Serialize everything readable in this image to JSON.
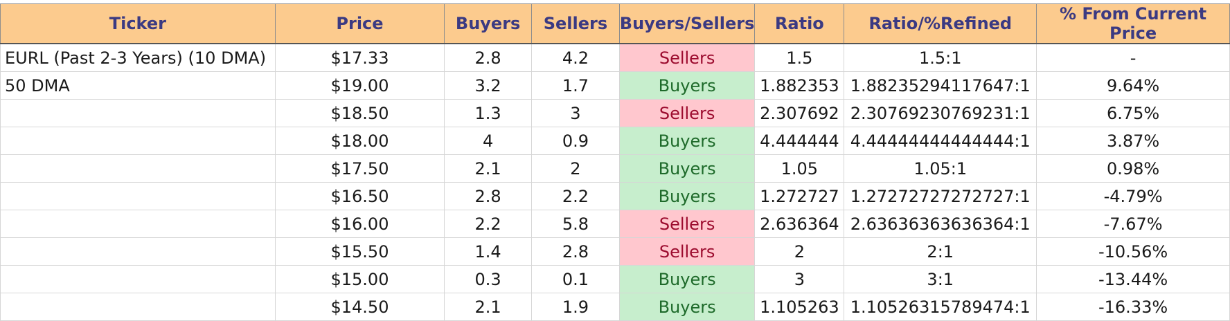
{
  "headers": [
    "Ticker",
    "Price",
    "Buyers",
    "Sellers",
    "Buyers/Sellers",
    "Ratio",
    "Ratio/%Refined",
    "% From Current Price"
  ],
  "rows": [
    {
      "ticker": "EURL (Past 2-3 Years) (10 DMA)",
      "price": "$17.33",
      "buyers": "2.8",
      "sellers": "4.2",
      "bs": "Sellers",
      "ratio": "1.5",
      "refined": "1.5:1",
      "pct": "-"
    },
    {
      "ticker": "50 DMA",
      "price": "$19.00",
      "buyers": "3.2",
      "sellers": "1.7",
      "bs": "Buyers",
      "ratio": "1.882353",
      "refined": "1.88235294117647:1",
      "pct": "9.64%"
    },
    {
      "ticker": "",
      "price": "$18.50",
      "buyers": "1.3",
      "sellers": "3",
      "bs": "Sellers",
      "ratio": "2.307692",
      "refined": "2.30769230769231:1",
      "pct": "6.75%"
    },
    {
      "ticker": "",
      "price": "$18.00",
      "buyers": "4",
      "sellers": "0.9",
      "bs": "Buyers",
      "ratio": "4.444444",
      "refined": "4.44444444444444:1",
      "pct": "3.87%"
    },
    {
      "ticker": "",
      "price": "$17.50",
      "buyers": "2.1",
      "sellers": "2",
      "bs": "Buyers",
      "ratio": "1.05",
      "refined": "1.05:1",
      "pct": "0.98%"
    },
    {
      "ticker": "",
      "price": "$16.50",
      "buyers": "2.8",
      "sellers": "2.2",
      "bs": "Buyers",
      "ratio": "1.272727",
      "refined": "1.27272727272727:1",
      "pct": "-4.79%"
    },
    {
      "ticker": "",
      "price": "$16.00",
      "buyers": "2.2",
      "sellers": "5.8",
      "bs": "Sellers",
      "ratio": "2.636364",
      "refined": "2.63636363636364:1",
      "pct": "-7.67%"
    },
    {
      "ticker": "",
      "price": "$15.50",
      "buyers": "1.4",
      "sellers": "2.8",
      "bs": "Sellers",
      "ratio": "2",
      "refined": "2:1",
      "pct": "-10.56%"
    },
    {
      "ticker": "",
      "price": "$15.00",
      "buyers": "0.3",
      "sellers": "0.1",
      "bs": "Buyers",
      "ratio": "3",
      "refined": "3:1",
      "pct": "-13.44%"
    },
    {
      "ticker": "",
      "price": "$14.50",
      "buyers": "2.1",
      "sellers": "1.9",
      "bs": "Buyers",
      "ratio": "1.105263",
      "refined": "1.10526315789474:1",
      "pct": "-16.33%"
    }
  ],
  "colors": {
    "header_bg": "#fccb8e",
    "header_text": "#3b3a82",
    "buyers_bg": "#c7eecd",
    "buyers_text": "#1e6a2a",
    "sellers_bg": "#ffc7ce",
    "sellers_text": "#9c0b2e"
  }
}
